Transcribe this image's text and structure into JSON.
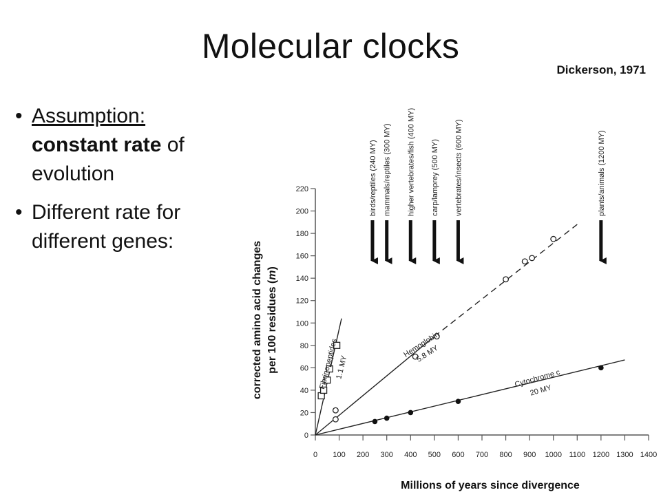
{
  "slide": {
    "title": "Molecular clocks",
    "citation": "Dickerson, 1971",
    "bullets": [
      {
        "intro": "Assumption:",
        "emphasis": "constant rate",
        "rest_a": " of",
        "rest_b": "evolution"
      },
      {
        "line1": "Different rate for",
        "line2": "different genes:"
      }
    ]
  },
  "chart_data": {
    "type": "scatter",
    "xlabel": "Millions of years since divergence",
    "ylabel_line1": "corrected amino acid changes",
    "ylabel_line2_prefix": "per 100 residues (",
    "ylabel_line2_var": "m",
    "ylabel_line2_suffix": ")",
    "xlim": [
      0,
      1400
    ],
    "ylim": [
      0,
      220
    ],
    "x_ticks": [
      0,
      100,
      200,
      300,
      400,
      500,
      600,
      700,
      800,
      900,
      1000,
      1100,
      1200,
      1300,
      1400
    ],
    "y_ticks": [
      0,
      20,
      40,
      60,
      80,
      100,
      120,
      140,
      160,
      180,
      200,
      220
    ],
    "grid": false,
    "series": [
      {
        "name": "Fibrinopeptides",
        "rate_label": "1.1 MY",
        "line_end": [
          110,
          104
        ],
        "marker": "open-square",
        "points": [
          [
            25,
            35
          ],
          [
            35,
            40
          ],
          [
            50,
            49
          ],
          [
            60,
            59
          ],
          [
            90,
            80
          ]
        ]
      },
      {
        "name": "Hemoglobin",
        "rate_label": "5.8 MY",
        "line_end_solid": [
          500,
          88
        ],
        "line_end_dashed": [
          1100,
          188
        ],
        "marker": "open-circle",
        "points": [
          [
            85,
            14
          ],
          [
            85,
            22
          ],
          [
            420,
            70
          ],
          [
            510,
            88
          ],
          [
            800,
            139
          ],
          [
            880,
            155
          ],
          [
            910,
            158
          ],
          [
            1000,
            175
          ]
        ]
      },
      {
        "name": "Cytochrome c",
        "rate_label": "20 MY",
        "line_end": [
          1300,
          67
        ],
        "marker": "filled-circle",
        "points": [
          [
            250,
            12
          ],
          [
            300,
            15
          ],
          [
            400,
            20
          ],
          [
            600,
            30
          ],
          [
            1200,
            60
          ]
        ]
      }
    ],
    "annotations": [
      {
        "label": "birds/reptiles (240 MY)",
        "x": 240
      },
      {
        "label": "mammals/reptiles (300 MY)",
        "x": 300
      },
      {
        "label": "higher vertebrates/fish (400 MY)",
        "x": 400
      },
      {
        "label": "carp/lamprey (500 MY)",
        "x": 500
      },
      {
        "label": "vertebrates/insects (600 MY)",
        "x": 600
      },
      {
        "label": "plants/animals (1200 MY)",
        "x": 1200
      }
    ]
  }
}
